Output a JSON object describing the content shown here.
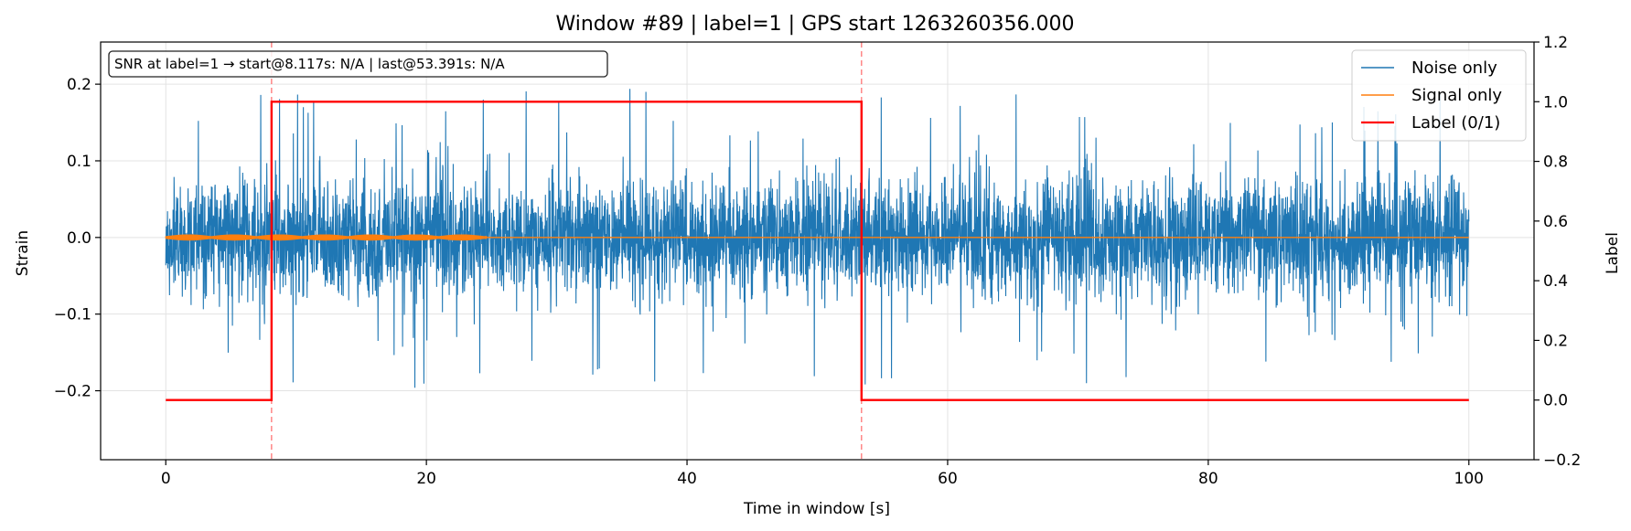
{
  "chart_data": {
    "type": "line",
    "title": "Window #89  |  label=1  |  GPS start 1263260356.000",
    "xlabel": "Time in window [s]",
    "ylabel": "Strain",
    "y2label": "Label",
    "xlim": [
      -5,
      105
    ],
    "ylim": [
      -0.29,
      0.255
    ],
    "y2lim": [
      -0.2,
      1.2
    ],
    "xticks": [
      0,
      20,
      40,
      60,
      80,
      100
    ],
    "yticks": [
      -0.2,
      -0.1,
      0.0,
      0.1,
      0.2
    ],
    "yticklabels": [
      "−0.2",
      "−0.1",
      "0.0",
      "0.1",
      "0.2"
    ],
    "y2ticks": [
      -0.2,
      0.0,
      0.2,
      0.4,
      0.6,
      0.8,
      1.0,
      1.2
    ],
    "y2ticklabels": [
      "−0.2",
      "0.0",
      "0.2",
      "0.4",
      "0.6",
      "0.8",
      "1.0",
      "1.2"
    ],
    "grid": true,
    "legend_position": "top-right",
    "annotation": "SNR at label=1 → start@8.117s: N/A | last@53.391s: N/A",
    "vlines": [
      8.117,
      53.391
    ],
    "series": [
      {
        "name": "Noise only",
        "color": "#1f77b4",
        "kind": "noise",
        "x_range": [
          0,
          100
        ],
        "typical_envelope": 0.09,
        "peak_min": -0.27,
        "peak_max": 0.21
      },
      {
        "name": "Signal only",
        "color": "#ff7f0e",
        "kind": "signal",
        "x_range": [
          0,
          100
        ],
        "active_range": [
          0,
          24.6
        ],
        "amplitude": 0.004
      },
      {
        "name": "Label (0/1)",
        "color": "#ff0000",
        "kind": "step",
        "axis": "right",
        "x": [
          0,
          8.117,
          8.117,
          53.391,
          53.391,
          100
        ],
        "values": [
          0,
          0,
          1,
          1,
          0,
          0
        ]
      }
    ]
  }
}
